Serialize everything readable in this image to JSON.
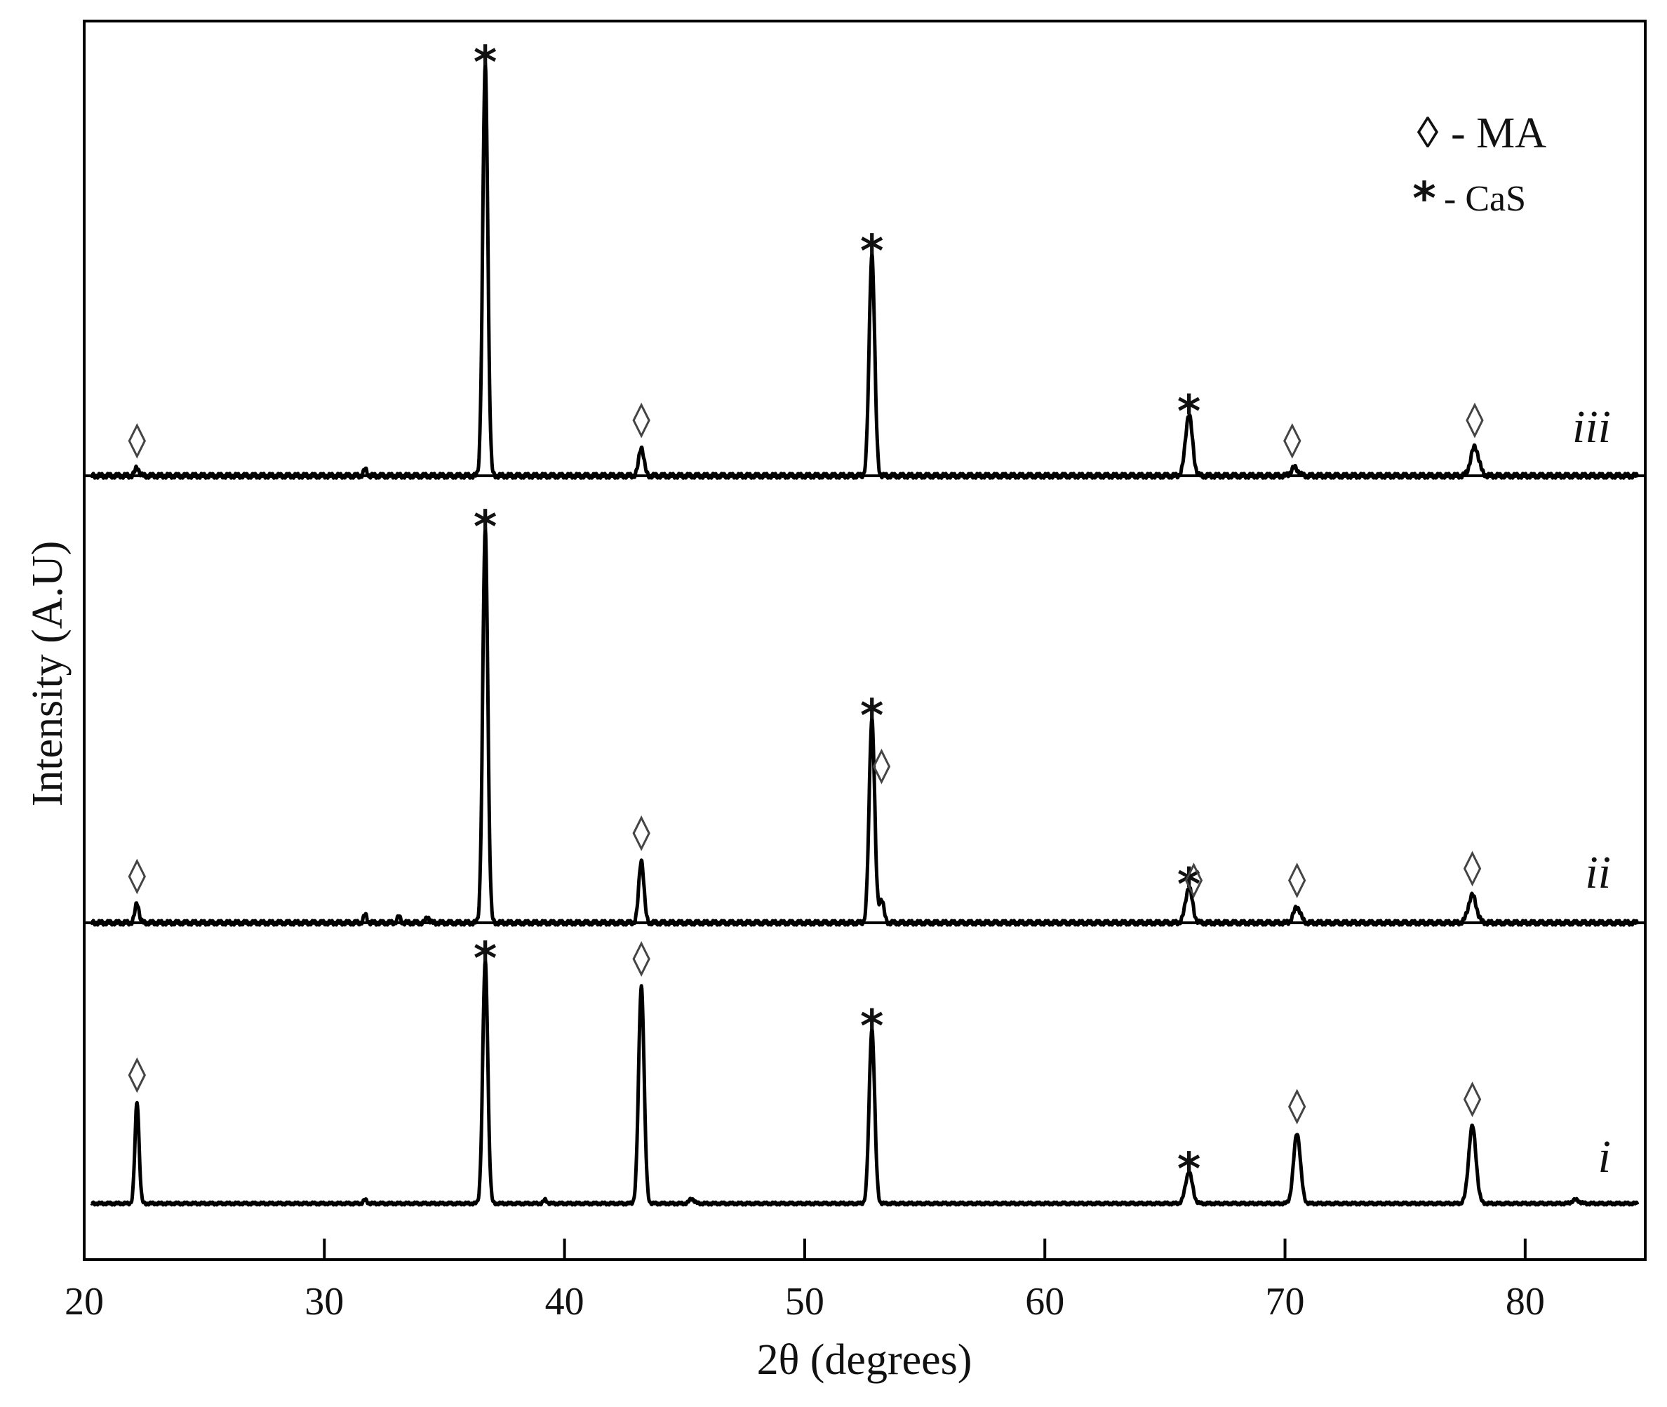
{
  "chart_data": {
    "type": "line",
    "xlabel": "2θ (degrees)",
    "ylabel": "Intensity (A.U)",
    "xlim": [
      20,
      85
    ],
    "x_ticks": [
      20,
      30,
      40,
      50,
      60,
      70,
      80
    ],
    "y_ticks_shown": false,
    "grid": false,
    "legend": {
      "placement": "top-right",
      "items": [
        {
          "symbol": "diamond",
          "symbol_text": "◊",
          "label": "- MA"
        },
        {
          "symbol": "star",
          "symbol_text": "*",
          "label": "- CaS"
        }
      ]
    },
    "series": [
      {
        "name": "i",
        "baseline": 0,
        "peaks": [
          {
            "x": 22.2,
            "height": 0.42,
            "width": 0.18
          },
          {
            "x": 31.7,
            "height": 0.015,
            "width": 0.15
          },
          {
            "x": 36.7,
            "height": 1.0,
            "width": 0.22
          },
          {
            "x": 39.2,
            "height": 0.015,
            "width": 0.15
          },
          {
            "x": 43.2,
            "height": 0.9,
            "width": 0.24
          },
          {
            "x": 45.3,
            "height": 0.02,
            "width": 0.2
          },
          {
            "x": 52.8,
            "height": 0.72,
            "width": 0.24
          },
          {
            "x": 66.0,
            "height": 0.13,
            "width": 0.3
          },
          {
            "x": 70.5,
            "height": 0.29,
            "width": 0.3
          },
          {
            "x": 77.8,
            "height": 0.32,
            "width": 0.32
          },
          {
            "x": 82.1,
            "height": 0.015,
            "width": 0.3
          }
        ],
        "markers": [
          {
            "type": "diamond",
            "x": 22.2,
            "height": 0.42
          },
          {
            "type": "star",
            "x": 36.7,
            "height": 1.0
          },
          {
            "type": "diamond",
            "x": 43.2,
            "height": 0.9
          },
          {
            "type": "star",
            "x": 52.8,
            "height": 0.72
          },
          {
            "type": "star",
            "x": 66.0,
            "height": 0.13
          },
          {
            "type": "diamond",
            "x": 70.5,
            "height": 0.29
          },
          {
            "type": "diamond",
            "x": 77.8,
            "height": 0.32
          }
        ]
      },
      {
        "name": "ii",
        "baseline": 0,
        "peaks": [
          {
            "x": 22.2,
            "height": 0.05,
            "width": 0.18
          },
          {
            "x": 31.7,
            "height": 0.02,
            "width": 0.15
          },
          {
            "x": 33.1,
            "height": 0.015,
            "width": 0.15
          },
          {
            "x": 34.3,
            "height": 0.015,
            "width": 0.15
          },
          {
            "x": 36.7,
            "height": 1.0,
            "width": 0.22
          },
          {
            "x": 43.2,
            "height": 0.16,
            "width": 0.22
          },
          {
            "x": 52.8,
            "height": 0.52,
            "width": 0.24
          },
          {
            "x": 53.2,
            "height": 0.06,
            "width": 0.2
          },
          {
            "x": 66.0,
            "height": 0.09,
            "width": 0.3
          },
          {
            "x": 70.5,
            "height": 0.04,
            "width": 0.3
          },
          {
            "x": 77.8,
            "height": 0.07,
            "width": 0.35
          }
        ],
        "markers": [
          {
            "type": "diamond",
            "x": 22.2,
            "height": 0.05
          },
          {
            "type": "star",
            "x": 36.7,
            "height": 1.0
          },
          {
            "type": "diamond",
            "x": 43.2,
            "height": 0.16
          },
          {
            "type": "star",
            "x": 52.8,
            "height": 0.52
          },
          {
            "type": "diamond",
            "x": 53.2,
            "height": 0.33
          },
          {
            "type": "star",
            "x": 66.0,
            "height": 0.09
          },
          {
            "type": "diamond",
            "x": 66.2,
            "height": 0.04
          },
          {
            "type": "diamond",
            "x": 70.5,
            "height": 0.04
          },
          {
            "type": "diamond",
            "x": 77.8,
            "height": 0.07
          }
        ]
      },
      {
        "name": "iii",
        "baseline": 0,
        "peaks": [
          {
            "x": 22.2,
            "height": 0.02,
            "width": 0.18
          },
          {
            "x": 31.7,
            "height": 0.015,
            "width": 0.15
          },
          {
            "x": 36.7,
            "height": 1.0,
            "width": 0.22
          },
          {
            "x": 43.2,
            "height": 0.07,
            "width": 0.22
          },
          {
            "x": 52.8,
            "height": 0.54,
            "width": 0.24
          },
          {
            "x": 66.0,
            "height": 0.15,
            "width": 0.3
          },
          {
            "x": 70.4,
            "height": 0.02,
            "width": 0.3
          },
          {
            "x": 77.9,
            "height": 0.07,
            "width": 0.35
          }
        ],
        "markers": [
          {
            "type": "diamond",
            "x": 22.2,
            "height": 0.02
          },
          {
            "type": "star",
            "x": 36.7,
            "height": 1.0
          },
          {
            "type": "diamond",
            "x": 43.2,
            "height": 0.07
          },
          {
            "type": "star",
            "x": 52.8,
            "height": 0.54
          },
          {
            "type": "star",
            "x": 66.0,
            "height": 0.15
          },
          {
            "type": "diamond",
            "x": 70.3,
            "height": 0.02
          },
          {
            "type": "diamond",
            "x": 77.9,
            "height": 0.07
          }
        ]
      }
    ]
  }
}
